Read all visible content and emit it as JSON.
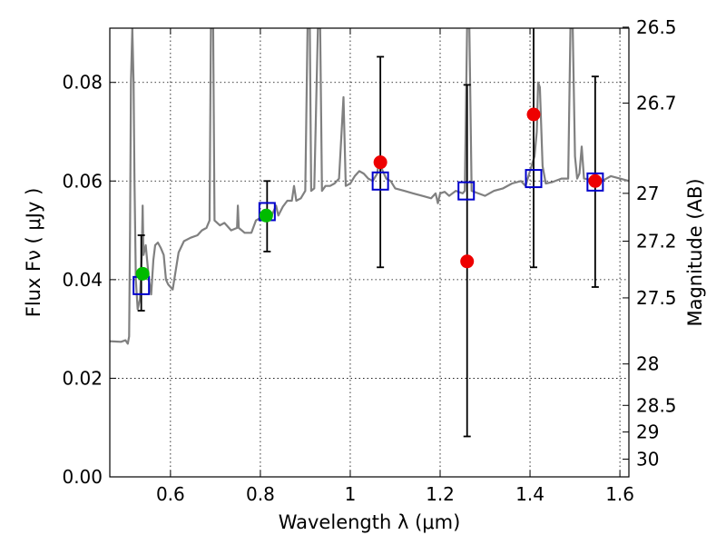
{
  "chart_data": {
    "type": "scatter",
    "xlabel": "Wavelength  λ (μm)",
    "ylabel_left": "Flux  Fν  ( μJy )",
    "ylabel_right": "Magnitude (AB)",
    "xlim": [
      0.465,
      1.62
    ],
    "ylim": [
      0.0,
      0.091
    ],
    "grid": true,
    "x_ticks": [
      0.6,
      0.8,
      1.0,
      1.2,
      1.4,
      1.6
    ],
    "x_tick_labels": [
      "0.6",
      "0.8",
      "1",
      "1.2",
      "1.4",
      "1.6"
    ],
    "y_ticks": [
      0.0,
      0.02,
      0.04,
      0.06,
      0.08
    ],
    "y_tick_labels": [
      "0.00",
      "0.02",
      "0.04",
      "0.06",
      "0.08"
    ],
    "right_ticks": [
      {
        "label": "26.5",
        "flux": 0.0912
      },
      {
        "label": "26.7",
        "flux": 0.0758
      },
      {
        "label": "27",
        "flux": 0.0575
      },
      {
        "label": "27.2",
        "flux": 0.0478
      },
      {
        "label": "27.5",
        "flux": 0.0363
      },
      {
        "label": "28",
        "flux": 0.0229
      },
      {
        "label": "28.5",
        "flux": 0.0145
      },
      {
        "label": "29",
        "flux": 0.0091
      },
      {
        "label": "30",
        "flux": 0.0036
      }
    ],
    "model_color": "#808080",
    "model_spectrum": [
      [
        0.465,
        0.0275
      ],
      [
        0.49,
        0.0274
      ],
      [
        0.5,
        0.0277
      ],
      [
        0.505,
        0.027
      ],
      [
        0.508,
        0.0285
      ],
      [
        0.51,
        0.05
      ],
      [
        0.512,
        0.08
      ],
      [
        0.515,
        0.091
      ],
      [
        0.518,
        0.08
      ],
      [
        0.52,
        0.06
      ],
      [
        0.523,
        0.04
      ],
      [
        0.527,
        0.034
      ],
      [
        0.532,
        0.036
      ],
      [
        0.536,
        0.045
      ],
      [
        0.538,
        0.055
      ],
      [
        0.54,
        0.045
      ],
      [
        0.545,
        0.047
      ],
      [
        0.552,
        0.04
      ],
      [
        0.557,
        0.037
      ],
      [
        0.562,
        0.044
      ],
      [
        0.566,
        0.047
      ],
      [
        0.572,
        0.0475
      ],
      [
        0.578,
        0.0465
      ],
      [
        0.585,
        0.045
      ],
      [
        0.59,
        0.04
      ],
      [
        0.595,
        0.039
      ],
      [
        0.605,
        0.038
      ],
      [
        0.618,
        0.0455
      ],
      [
        0.63,
        0.0478
      ],
      [
        0.645,
        0.0485
      ],
      [
        0.66,
        0.049
      ],
      [
        0.67,
        0.05
      ],
      [
        0.68,
        0.0505
      ],
      [
        0.687,
        0.052
      ],
      [
        0.69,
        0.091
      ],
      [
        0.695,
        0.091
      ],
      [
        0.698,
        0.052
      ],
      [
        0.71,
        0.051
      ],
      [
        0.72,
        0.0515
      ],
      [
        0.735,
        0.05
      ],
      [
        0.748,
        0.0505
      ],
      [
        0.75,
        0.055
      ],
      [
        0.752,
        0.0505
      ],
      [
        0.765,
        0.0495
      ],
      [
        0.78,
        0.0495
      ],
      [
        0.79,
        0.052
      ],
      [
        0.8,
        0.0525
      ],
      [
        0.81,
        0.053
      ],
      [
        0.818,
        0.0535
      ],
      [
        0.825,
        0.053
      ],
      [
        0.835,
        0.055
      ],
      [
        0.84,
        0.053
      ],
      [
        0.85,
        0.0548
      ],
      [
        0.86,
        0.056
      ],
      [
        0.87,
        0.056
      ],
      [
        0.875,
        0.059
      ],
      [
        0.88,
        0.056
      ],
      [
        0.89,
        0.0565
      ],
      [
        0.9,
        0.058
      ],
      [
        0.905,
        0.091
      ],
      [
        0.91,
        0.091
      ],
      [
        0.913,
        0.058
      ],
      [
        0.92,
        0.0585
      ],
      [
        0.928,
        0.091
      ],
      [
        0.933,
        0.091
      ],
      [
        0.937,
        0.058
      ],
      [
        0.945,
        0.059
      ],
      [
        0.955,
        0.059
      ],
      [
        0.965,
        0.0595
      ],
      [
        0.975,
        0.0605
      ],
      [
        0.985,
        0.077
      ],
      [
        0.99,
        0.059
      ],
      [
        1.0,
        0.0595
      ],
      [
        1.01,
        0.061
      ],
      [
        1.02,
        0.062
      ],
      [
        1.03,
        0.0615
      ],
      [
        1.04,
        0.0605
      ],
      [
        1.05,
        0.06
      ],
      [
        1.06,
        0.0615
      ],
      [
        1.065,
        0.065
      ],
      [
        1.07,
        0.0625
      ],
      [
        1.08,
        0.0605
      ],
      [
        1.09,
        0.06
      ],
      [
        1.1,
        0.0585
      ],
      [
        1.12,
        0.058
      ],
      [
        1.14,
        0.0575
      ],
      [
        1.16,
        0.057
      ],
      [
        1.18,
        0.0565
      ],
      [
        1.19,
        0.0575
      ],
      [
        1.195,
        0.0555
      ],
      [
        1.2,
        0.0575
      ],
      [
        1.21,
        0.0578
      ],
      [
        1.22,
        0.057
      ],
      [
        1.235,
        0.058
      ],
      [
        1.25,
        0.0575
      ],
      [
        1.255,
        0.058
      ],
      [
        1.26,
        0.091
      ],
      [
        1.265,
        0.091
      ],
      [
        1.27,
        0.058
      ],
      [
        1.285,
        0.0575
      ],
      [
        1.3,
        0.057
      ],
      [
        1.32,
        0.058
      ],
      [
        1.34,
        0.0585
      ],
      [
        1.36,
        0.0595
      ],
      [
        1.38,
        0.06
      ],
      [
        1.39,
        0.059
      ],
      [
        1.4,
        0.062
      ],
      [
        1.41,
        0.065
      ],
      [
        1.415,
        0.07
      ],
      [
        1.418,
        0.08
      ],
      [
        1.422,
        0.079
      ],
      [
        1.428,
        0.063
      ],
      [
        1.435,
        0.0595
      ],
      [
        1.45,
        0.0598
      ],
      [
        1.47,
        0.0605
      ],
      [
        1.485,
        0.0605
      ],
      [
        1.49,
        0.091
      ],
      [
        1.495,
        0.091
      ],
      [
        1.5,
        0.065
      ],
      [
        1.505,
        0.0605
      ],
      [
        1.51,
        0.0615
      ],
      [
        1.515,
        0.067
      ],
      [
        1.52,
        0.0605
      ],
      [
        1.54,
        0.0602
      ],
      [
        1.56,
        0.06
      ],
      [
        1.58,
        0.061
      ],
      [
        1.6,
        0.0605
      ],
      [
        1.62,
        0.06
      ]
    ],
    "blue_squares": [
      {
        "x": 0.535,
        "y": 0.0388
      },
      {
        "x": 0.815,
        "y": 0.0538
      },
      {
        "x": 1.067,
        "y": 0.06
      },
      {
        "x": 1.258,
        "y": 0.058
      },
      {
        "x": 1.408,
        "y": 0.0605
      },
      {
        "x": 1.545,
        "y": 0.0598
      }
    ],
    "error_bars": [
      {
        "x": 0.535,
        "low": 0.0337,
        "high": 0.049
      },
      {
        "x": 0.815,
        "low": 0.0457,
        "high": 0.06
      },
      {
        "x": 1.067,
        "low": 0.0425,
        "high": 0.0852
      },
      {
        "x": 1.26,
        "low": 0.0082,
        "high": 0.0795
      },
      {
        "x": 1.408,
        "low": 0.0425,
        "high": 0.0912
      },
      {
        "x": 1.545,
        "low": 0.0385,
        "high": 0.0812
      }
    ],
    "green_points": [
      {
        "x": 0.538,
        "y": 0.0412
      },
      {
        "x": 0.813,
        "y": 0.053
      }
    ],
    "red_points": [
      {
        "x": 1.067,
        "y": 0.0638
      },
      {
        "x": 1.26,
        "y": 0.0437
      },
      {
        "x": 1.408,
        "y": 0.0735
      },
      {
        "x": 1.545,
        "y": 0.06
      }
    ],
    "colors": {
      "square": "#0000cc",
      "green": "#00bb00",
      "red": "#ee0000",
      "errorbar": "#000000",
      "grid": "#000000"
    }
  }
}
